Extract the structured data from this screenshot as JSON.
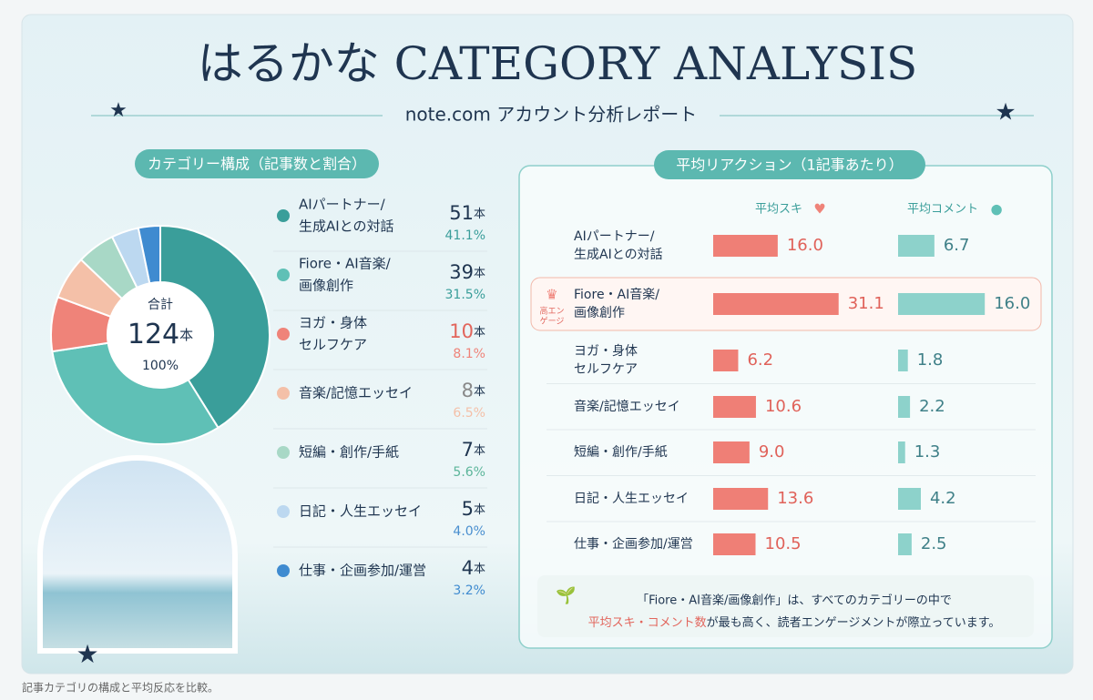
{
  "header": {
    "title": "はるかな CATEGORY ANALYSIS",
    "subtitle": "note.com アカウント分析レポート"
  },
  "chart_data": [
    {
      "type": "donut",
      "title": "カテゴリー構成（記事数と割合）",
      "categories": [
        [
          "AIパートナー/",
          "生成AIとの対話"
        ],
        [
          "Fiore・AI音楽/",
          "画像創作"
        ],
        [
          "ヨガ・身体",
          "セルフケア"
        ],
        [
          "音楽/記憶エッセイ"
        ],
        [
          "短編・創作/手紙"
        ],
        [
          "日記・人生エッセイ"
        ],
        [
          "仕事・企画参加/運営"
        ]
      ],
      "values": [
        51,
        39,
        10,
        8,
        7,
        5,
        4
      ],
      "share_labels": [
        "41.1%",
        "31.5%",
        "8.1%",
        "6.5%",
        "5.6%",
        "4.0%",
        "3.2%"
      ],
      "colors": [
        "#3a9e9a",
        "#5fc0b6",
        "#ef8379",
        "#f4c0a8",
        "#a8d8c6",
        "#bcd8f0",
        "#3f8bd0"
      ],
      "unit": "本",
      "center": {
        "label": "合計",
        "total": 124,
        "unit": "本",
        "share": "100%"
      }
    },
    {
      "type": "hbar",
      "title": "平均リアクション（1記事あたり）",
      "categories": [
        [
          "AIパートナー/",
          "生成AIとの対話"
        ],
        [
          "Fiore・AI音楽/",
          "画像創作"
        ],
        [
          "ヨガ・身体",
          "セルフケア"
        ],
        [
          "音楽/記憶エッセイ"
        ],
        [
          "短編・創作/手紙"
        ],
        [
          "日記・人生エッセイ"
        ],
        [
          "仕事・企画参加/運営"
        ]
      ],
      "series": [
        {
          "name": "平均スキ",
          "color": "#ef7f76",
          "values": [
            16.0,
            31.1,
            6.2,
            10.6,
            9.0,
            13.6,
            10.5
          ],
          "value_labels": [
            "16.0",
            "31.1",
            "6.2",
            "10.6",
            "9.0",
            "13.6",
            "10.5"
          ]
        },
        {
          "name": "平均コメント",
          "color": "#8dd2cb",
          "axis": "x2",
          "values": [
            6.7,
            16.0,
            1.8,
            2.2,
            1.3,
            4.2,
            2.5
          ],
          "value_labels": [
            "6.7",
            "16.0",
            "1.8",
            "2.2",
            "1.3",
            "4.2",
            "2.5"
          ]
        }
      ],
      "xlim": [
        0,
        35
      ],
      "x2lim": [
        0,
        20
      ],
      "highlight": {
        "index": 1,
        "label": [
          "高エン",
          "ゲージ"
        ]
      },
      "note": {
        "line1": "「Fiore・AI音楽/画像創作」は、すべてのカテゴリーの中で",
        "line2_emphasis": "平均スキ・コメント数",
        "line2_rest": "が最も高く、読者エンゲージメントが際立っています。"
      }
    }
  ],
  "footer": "記事カテゴリの構成と平均反応を比較。"
}
